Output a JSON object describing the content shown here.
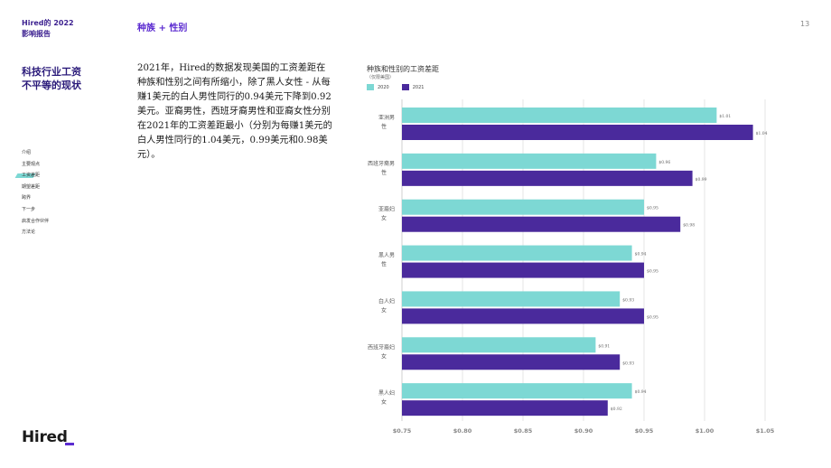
{
  "header": {
    "brand": "Hired的 2022 影响报告",
    "section": "种族 + 性别",
    "page_number": "13"
  },
  "sidebar": {
    "heading": "科技行业工资不平等的现状",
    "nav": [
      {
        "label": "介绍",
        "active": false
      },
      {
        "label": "主要观点",
        "active": false
      },
      {
        "label": "工资差距",
        "active": true
      },
      {
        "label": "期望差距",
        "active": false
      },
      {
        "label": "跨界",
        "active": false
      },
      {
        "label": "下一步",
        "active": false
      },
      {
        "label": "启发合作伙伴",
        "active": false
      },
      {
        "label": "方法论",
        "active": false
      }
    ]
  },
  "main": {
    "paragraph": "2021年，Hired的数据发现美国的工资差距在种族和性别之间有所缩小，除了黑人女性 - 从每赚1美元的白人男性同行的0.94美元下降到0.92美元。亚裔男性，西班牙裔男性和亚裔女性分别在2021年的工资差距最小（分别为每赚1美元的白人男性同行的1.04美元，0.99美元和0.98美元）。"
  },
  "chart_header": {
    "title": "种族和性别的工资差距",
    "subtitle": "（仅限美国）",
    "legend": [
      {
        "label": "2020",
        "color": "#7dd8d4"
      },
      {
        "label": "2021",
        "color": "#4a2a9c"
      }
    ]
  },
  "footer": {
    "logo": "Hired"
  },
  "chart_data": {
    "type": "bar",
    "orientation": "horizontal",
    "categories": [
      [
        "亚洲男",
        "性"
      ],
      [
        "西班牙裔男",
        "性"
      ],
      [
        "亚裔妇",
        "女"
      ],
      [
        "黑人男",
        "性"
      ],
      [
        "白人妇",
        "女"
      ],
      [
        "西班牙裔妇",
        "女"
      ],
      [
        "黑人妇",
        "女"
      ]
    ],
    "series": [
      {
        "name": "2020",
        "color": "#7dd8d4",
        "values": [
          1.01,
          0.96,
          0.95,
          0.94,
          0.93,
          0.91,
          0.94
        ],
        "labels": [
          "$1.01",
          "$0.96",
          "$0.95",
          "$0.94",
          "$0.93",
          "$0.91",
          "$0.94"
        ]
      },
      {
        "name": "2021",
        "color": "#4a2a9c",
        "values": [
          1.04,
          0.99,
          0.98,
          0.95,
          0.95,
          0.93,
          0.92
        ],
        "labels": [
          "$1.04",
          "$0.99",
          "$0.98",
          "$0.95",
          "$0.95",
          "$0.93",
          "$0.92"
        ]
      }
    ],
    "xlim": [
      0.75,
      1.05
    ],
    "ticks": [
      0.75,
      0.8,
      0.85,
      0.9,
      0.95,
      1.0,
      1.05
    ],
    "tick_labels": [
      "$0.75",
      "$0.80",
      "$0.85",
      "$0.90",
      "$0.95",
      "$1.00",
      "$1.05"
    ],
    "grid": true,
    "legend_position": "top-left"
  }
}
